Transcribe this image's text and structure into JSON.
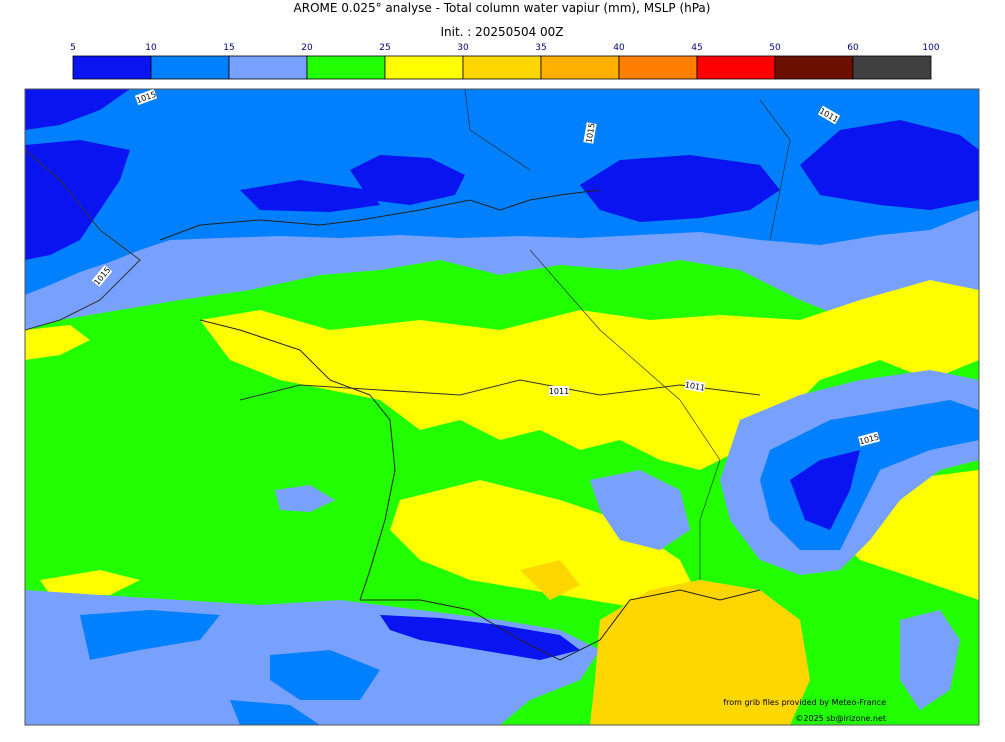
{
  "title": "AROME 0.025° analyse - Total column water vapiur (mm), MSLP (hPa)",
  "init": "Init. : 20250504 00Z",
  "colorbar": {
    "ticks": [
      5,
      10,
      15,
      20,
      25,
      30,
      35,
      40,
      45,
      50,
      60,
      100
    ],
    "colors": [
      "#0a14f0",
      "#0080ff",
      "#78a0ff",
      "#22ff00",
      "#ffff00",
      "#ffd700",
      "#ffb000",
      "#ff8000",
      "#ff0000",
      "#6b0f00",
      "#404040"
    ]
  },
  "isobar_labels": [
    "1015",
    "1015",
    "1011",
    "1015",
    "1011",
    "1011",
    "1015"
  ],
  "credits": [
    "from grib files provided by Meteo-France",
    "©2025 sb@irizone.net"
  ]
}
